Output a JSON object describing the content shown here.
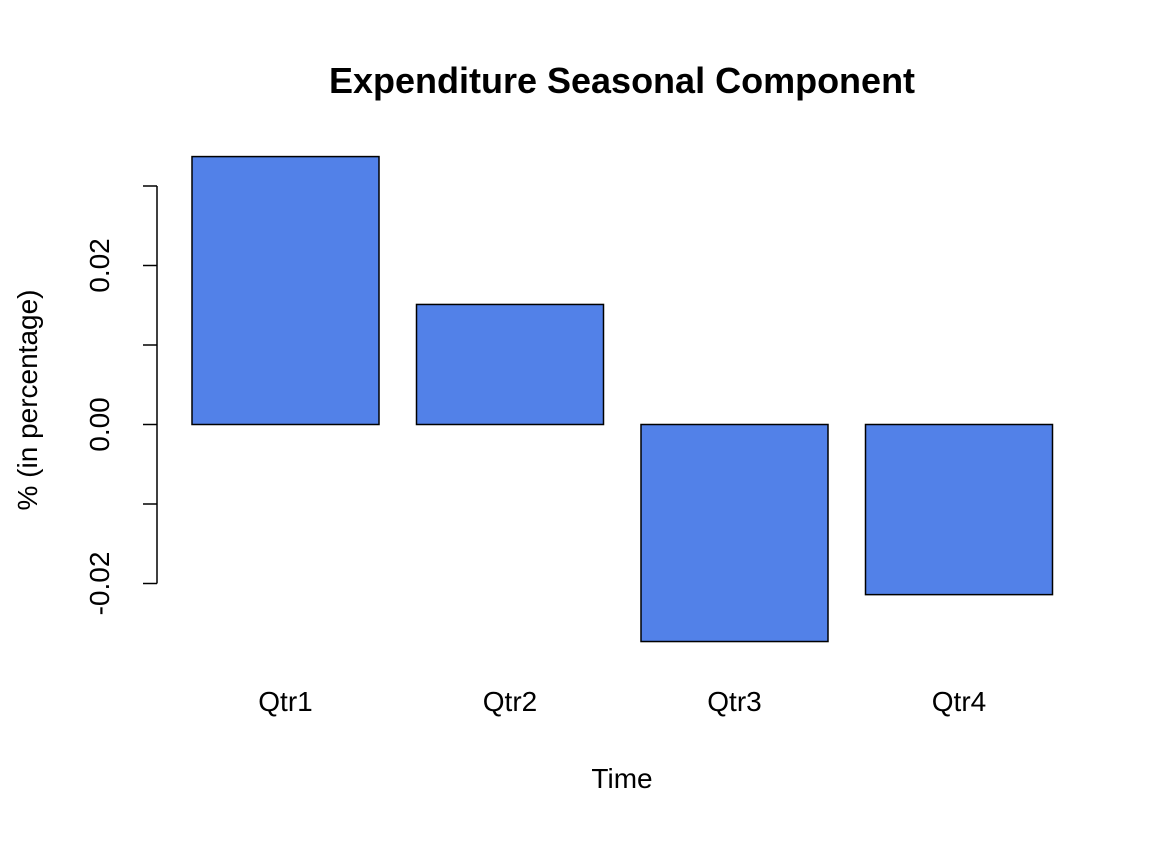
{
  "chart_data": {
    "type": "bar",
    "title": "Expenditure Seasonal Component",
    "xlabel": "Time",
    "ylabel": "% (in percentage)",
    "categories": [
      "Qtr1",
      "Qtr2",
      "Qtr3",
      "Qtr4"
    ],
    "values": [
      0.0337,
      0.0151,
      -0.0273,
      -0.0214
    ],
    "ylim": [
      -0.03,
      0.035
    ],
    "yticks": [
      -0.02,
      -0.01,
      0.0,
      0.01,
      0.02,
      0.03
    ],
    "ytick_labels": [
      "-0.02",
      "",
      "0.00",
      "",
      "0.02",
      ""
    ],
    "bar_color": "#5281e8",
    "bar_edge_color": "#000000",
    "grid": false,
    "legend": "none"
  }
}
